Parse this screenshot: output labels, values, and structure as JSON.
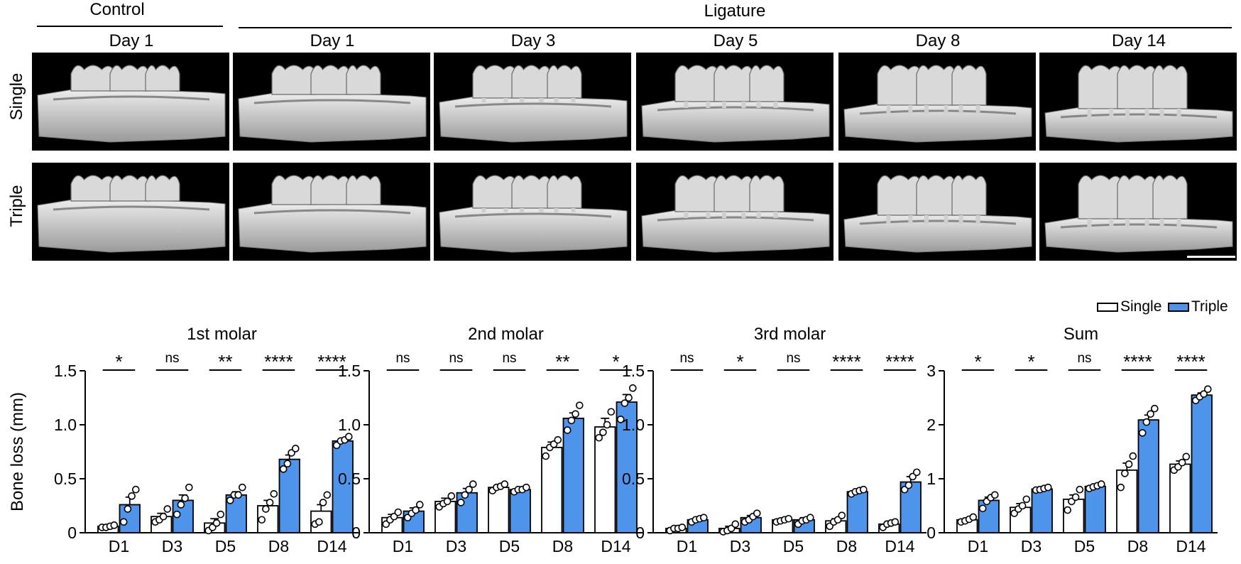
{
  "figure": {
    "group_control": "Control",
    "group_ligature": "Ligature",
    "columns": [
      "Day 1",
      "Day 1",
      "Day 3",
      "Day 5",
      "Day 8",
      "Day 14"
    ],
    "rows": [
      "Single",
      "Triple"
    ]
  },
  "colors": {
    "single": "#ffffff",
    "triple": "#4d94ea",
    "stroke": "#000000"
  },
  "chart_data": [
    {
      "type": "bar",
      "title": "1st molar",
      "ylabel": "Bone loss (mm)",
      "ylim": [
        0,
        1.5
      ],
      "yticks": [
        "0",
        "0.5",
        "1.0",
        "1.5"
      ],
      "categories": [
        "D1",
        "D3",
        "D5",
        "D8",
        "D14"
      ],
      "significance": [
        "*",
        "ns",
        "**",
        "****",
        "****"
      ],
      "series": [
        {
          "name": "Single",
          "values": [
            0.06,
            0.15,
            0.09,
            0.25,
            0.2
          ],
          "sem": [
            0.01,
            0.03,
            0.04,
            0.05,
            0.06
          ],
          "points": [
            [
              0.05,
              0.05,
              0.06,
              0.07
            ],
            [
              0.1,
              0.12,
              0.15,
              0.22
            ],
            [
              0.02,
              0.05,
              0.09,
              0.17
            ],
            [
              0.12,
              0.22,
              0.28,
              0.36
            ],
            [
              0.08,
              0.1,
              0.28,
              0.35
            ]
          ]
        },
        {
          "name": "Triple",
          "values": [
            0.26,
            0.3,
            0.35,
            0.68,
            0.85
          ],
          "sem": [
            0.07,
            0.05,
            0.03,
            0.04,
            0.02
          ],
          "points": [
            [
              0.1,
              0.22,
              0.34,
              0.4
            ],
            [
              0.17,
              0.26,
              0.32,
              0.42
            ],
            [
              0.3,
              0.35,
              0.35,
              0.42
            ],
            [
              0.59,
              0.64,
              0.74,
              0.78
            ],
            [
              0.81,
              0.85,
              0.86,
              0.89
            ]
          ]
        }
      ]
    },
    {
      "type": "bar",
      "title": "2nd molar",
      "ylim": [
        0,
        1.5
      ],
      "yticks": [
        "0",
        "0.5",
        "1.0",
        "1.5"
      ],
      "categories": [
        "D1",
        "D3",
        "D5",
        "D8",
        "D14"
      ],
      "significance": [
        "ns",
        "ns",
        "ns",
        "**",
        "*"
      ],
      "series": [
        {
          "name": "Single",
          "values": [
            0.14,
            0.29,
            0.42,
            0.79,
            0.98
          ],
          "sem": [
            0.03,
            0.03,
            0.02,
            0.05,
            0.08
          ],
          "points": [
            [
              0.08,
              0.12,
              0.15,
              0.19
            ],
            [
              0.24,
              0.27,
              0.29,
              0.34
            ],
            [
              0.39,
              0.42,
              0.43,
              0.45
            ],
            [
              0.71,
              0.79,
              0.82,
              0.86
            ],
            [
              0.88,
              0.93,
              1.0,
              1.12
            ]
          ]
        },
        {
          "name": "Triple",
          "values": [
            0.2,
            0.37,
            0.4,
            1.06,
            1.21
          ],
          "sem": [
            0.03,
            0.04,
            0.01,
            0.05,
            0.07
          ],
          "points": [
            [
              0.14,
              0.18,
              0.21,
              0.26
            ],
            [
              0.28,
              0.35,
              0.4,
              0.45
            ],
            [
              0.38,
              0.4,
              0.4,
              0.42
            ],
            [
              0.95,
              1.04,
              1.1,
              1.18
            ],
            [
              1.05,
              1.2,
              1.25,
              1.34
            ]
          ]
        }
      ]
    },
    {
      "type": "bar",
      "title": "3rd molar",
      "ylim": [
        0,
        1.5
      ],
      "yticks": [
        "0",
        "0.5",
        "1.0",
        "1.5"
      ],
      "categories": [
        "D1",
        "D3",
        "D5",
        "D8",
        "D14"
      ],
      "significance": [
        "ns",
        "*",
        "ns",
        "****",
        "****"
      ],
      "series": [
        {
          "name": "Single",
          "values": [
            0.04,
            0.04,
            0.12,
            0.11,
            0.08
          ],
          "sem": [
            0.01,
            0.02,
            0.01,
            0.02,
            0.02
          ],
          "points": [
            [
              0.02,
              0.04,
              0.04,
              0.05
            ],
            [
              0.01,
              0.02,
              0.04,
              0.08
            ],
            [
              0.1,
              0.11,
              0.12,
              0.13
            ],
            [
              0.06,
              0.1,
              0.12,
              0.16
            ],
            [
              0.05,
              0.08,
              0.09,
              0.1
            ]
          ]
        },
        {
          "name": "Triple",
          "values": [
            0.12,
            0.14,
            0.12,
            0.38,
            0.47
          ],
          "sem": [
            0.01,
            0.02,
            0.02,
            0.02,
            0.05
          ],
          "points": [
            [
              0.1,
              0.12,
              0.13,
              0.14
            ],
            [
              0.1,
              0.12,
              0.15,
              0.18
            ],
            [
              0.08,
              0.11,
              0.12,
              0.14
            ],
            [
              0.36,
              0.38,
              0.39,
              0.4
            ],
            [
              0.4,
              0.44,
              0.52,
              0.56
            ]
          ]
        }
      ]
    },
    {
      "type": "bar",
      "title": "Sum",
      "ylim": [
        0,
        3
      ],
      "yticks": [
        "0",
        "1",
        "2",
        "3"
      ],
      "categories": [
        "D1",
        "D3",
        "D5",
        "D8",
        "D14"
      ],
      "significance": [
        "*",
        "*",
        "ns",
        "****",
        "****"
      ],
      "series": [
        {
          "name": "Single",
          "values": [
            0.24,
            0.47,
            0.62,
            1.16,
            1.27
          ],
          "sem": [
            0.03,
            0.07,
            0.08,
            0.13,
            0.06
          ],
          "points": [
            [
              0.2,
              0.22,
              0.25,
              0.29
            ],
            [
              0.36,
              0.44,
              0.5,
              0.62
            ],
            [
              0.42,
              0.58,
              0.66,
              0.8
            ],
            [
              0.84,
              1.1,
              1.27,
              1.42
            ],
            [
              1.16,
              1.22,
              1.3,
              1.41
            ]
          ]
        },
        {
          "name": "Triple",
          "values": [
            0.6,
            0.81,
            0.86,
            2.09,
            2.55
          ],
          "sem": [
            0.06,
            0.02,
            0.03,
            0.09,
            0.04
          ],
          "points": [
            [
              0.45,
              0.58,
              0.65,
              0.7
            ],
            [
              0.79,
              0.8,
              0.82,
              0.84
            ],
            [
              0.82,
              0.85,
              0.87,
              0.9
            ],
            [
              1.85,
              2.05,
              2.2,
              2.3
            ],
            [
              2.45,
              2.52,
              2.57,
              2.66
            ]
          ]
        }
      ]
    }
  ],
  "legend": {
    "single": "Single",
    "triple": "Triple"
  }
}
